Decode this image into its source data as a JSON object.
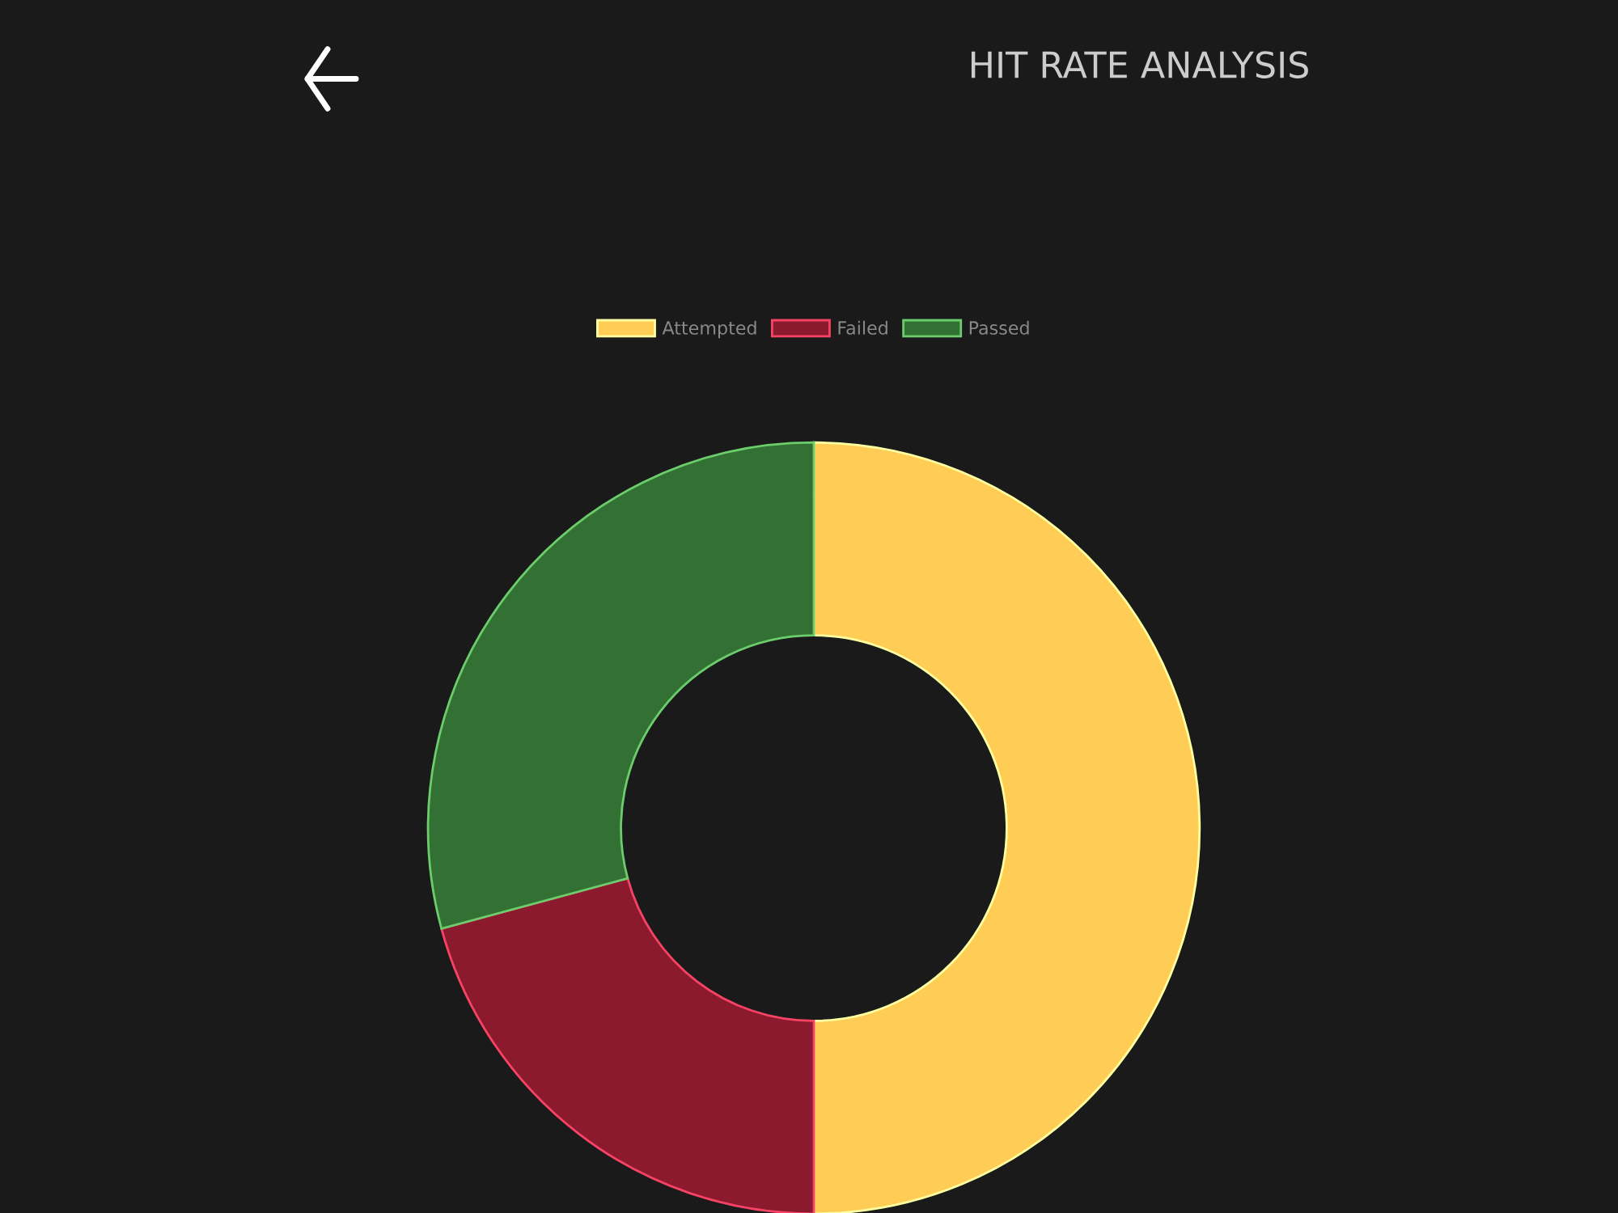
{
  "chart_data": {
    "type": "donut",
    "title": "HIT RATE ANALYSIS",
    "categories": [
      "Attempted",
      "Failed",
      "Passed"
    ],
    "values": [
      50,
      20.8,
      29.2
    ],
    "colors": [
      "#ffcc55",
      "#8b1a2f",
      "#337033"
    ],
    "legend": "top"
  }
}
